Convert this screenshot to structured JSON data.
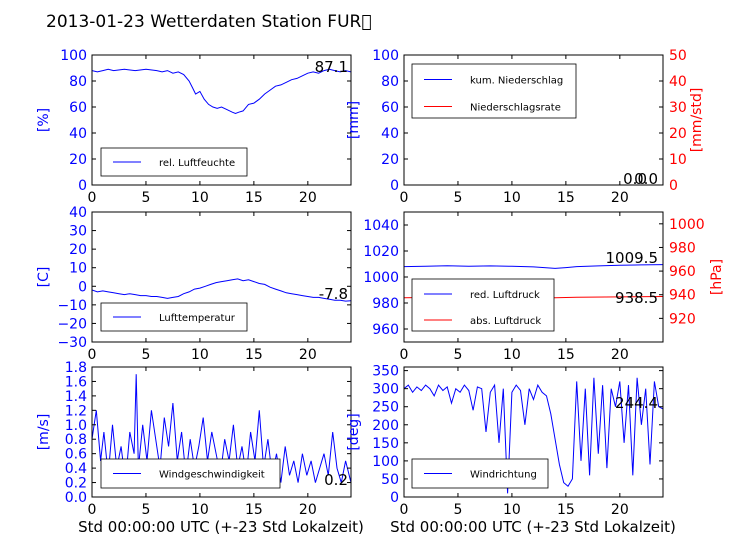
{
  "figure_title": "2013-01-23 Wetterdaten Station FUR\u0000",
  "xlabel": "Std 00:00:00 UTC (+-23 Std Lokalzeit)",
  "colors": {
    "blue": "#0000ff",
    "red": "#ff0000",
    "black": "#000000"
  },
  "chart_data": [
    {
      "id": "humidity",
      "type": "line",
      "xlim": [
        0,
        24
      ],
      "ylim": [
        0,
        100
      ],
      "xticks": [
        0,
        5,
        10,
        15,
        20
      ],
      "yticks": [
        0,
        20,
        40,
        60,
        80,
        100
      ],
      "ylabel": "[%]",
      "legend": [
        "rel. Luftfeuchte"
      ],
      "legend_placement": "lower-left",
      "value_label": "87.1",
      "series": [
        {
          "name": "rel. Luftfeuchte",
          "color": "#0000ff",
          "x": [
            0,
            0.5,
            1,
            1.5,
            2,
            3,
            4,
            5,
            6,
            6.5,
            7,
            7.5,
            8,
            8.5,
            9,
            9.3,
            9.6,
            10,
            10.4,
            10.8,
            11.2,
            11.6,
            12,
            12.5,
            13,
            13.3,
            13.6,
            14,
            14.5,
            15,
            15.5,
            16,
            16.5,
            17,
            17.5,
            18,
            18.5,
            19,
            19.5,
            20,
            20.5,
            21,
            21.5,
            22,
            22.5,
            23,
            23.5,
            24
          ],
          "y": [
            88,
            87,
            88,
            89,
            88,
            89,
            88,
            89,
            88,
            87,
            88,
            86,
            87,
            85,
            80,
            75,
            70,
            72,
            66,
            62,
            60,
            59,
            60,
            58,
            56,
            55,
            56,
            57,
            62,
            63,
            66,
            70,
            73,
            76,
            77,
            79,
            81,
            82,
            84,
            86,
            87,
            86,
            88,
            89,
            88,
            87,
            88,
            87
          ]
        }
      ]
    },
    {
      "id": "precipitation",
      "type": "line",
      "xlim": [
        0,
        24
      ],
      "ylim": [
        0,
        100
      ],
      "ylim_right": [
        0,
        50
      ],
      "xticks": [
        0,
        5,
        10,
        15,
        20
      ],
      "yticks": [
        0,
        20,
        40,
        60,
        80,
        100
      ],
      "yticks_right": [
        0,
        10,
        20,
        30,
        40,
        50
      ],
      "ylabel": "[mm]",
      "ylabel_right": "[mm/std]",
      "legend": [
        "kum. Niederschlag",
        "Niederschlagsrate"
      ],
      "legend_placement": "upper-left",
      "value_label": "0.0",
      "value_label_right": "0.0",
      "series": [
        {
          "name": "kum. Niederschlag",
          "color": "#0000ff",
          "x": [
            0,
            24
          ],
          "y": [
            0,
            0
          ]
        },
        {
          "name": "Niederschlagsrate",
          "color": "#ff0000",
          "axis": "right",
          "x": [
            0,
            24
          ],
          "y": [
            0,
            0
          ]
        }
      ]
    },
    {
      "id": "temperature",
      "type": "line",
      "xlim": [
        0,
        24
      ],
      "ylim": [
        -30,
        40
      ],
      "xticks": [
        0,
        5,
        10,
        15,
        20
      ],
      "yticks": [
        -30,
        -20,
        -10,
        0,
        10,
        20,
        30,
        40
      ],
      "ylabel": "[C]",
      "legend": [
        "Lufttemperatur"
      ],
      "legend_placement": "lower-left",
      "value_label": "-7.8",
      "series": [
        {
          "name": "Lufttemperatur",
          "color": "#0000ff",
          "x": [
            0,
            0.5,
            1,
            1.5,
            2,
            2.5,
            3,
            3.5,
            4,
            4.5,
            5,
            5.5,
            6,
            6.5,
            7,
            7.5,
            8,
            8.5,
            9,
            9.5,
            10,
            10.5,
            11,
            11.5,
            12,
            12.5,
            13,
            13.5,
            14,
            14.5,
            15,
            15.5,
            16,
            16.5,
            17,
            17.5,
            18,
            18.5,
            19,
            19.5,
            20,
            20.5,
            21,
            21.5,
            22,
            22.5,
            23,
            23.5,
            24
          ],
          "y": [
            -2,
            -3,
            -2.5,
            -3,
            -3.5,
            -4,
            -4.5,
            -4,
            -4.5,
            -5,
            -5,
            -5.5,
            -5.5,
            -6,
            -6.5,
            -6,
            -5.5,
            -4,
            -3,
            -1.5,
            -1,
            0,
            1,
            2,
            2.5,
            3,
            3.5,
            4,
            3,
            3.5,
            2.5,
            1.5,
            1,
            -0.5,
            -1.5,
            -2.5,
            -3.5,
            -4,
            -4.5,
            -5,
            -5.5,
            -6,
            -6,
            -6.5,
            -7,
            -7.5,
            -7.5,
            -8,
            -7.8
          ]
        }
      ]
    },
    {
      "id": "pressure",
      "type": "line",
      "xlim": [
        0,
        24
      ],
      "ylim": [
        950,
        1050
      ],
      "ylim_right": [
        900,
        1010
      ],
      "xticks": [
        0,
        5,
        10,
        15,
        20
      ],
      "yticks": [
        960,
        980,
        1000,
        1020,
        1040
      ],
      "yticks_right": [
        920,
        940,
        960,
        980,
        1000
      ],
      "ylabel": "[hPa]",
      "legend": [
        "red. Luftdruck",
        "abs. Luftdruck"
      ],
      "legend_placement": "lower-left",
      "value_label": "1009.5",
      "value_label_right": "938.5",
      "series": [
        {
          "name": "red. Luftdruck",
          "color": "#0000ff",
          "x": [
            0,
            2,
            4,
            6,
            8,
            10,
            12,
            13,
            14,
            15,
            16,
            18,
            20,
            22,
            24
          ],
          "y": [
            1008,
            1008.2,
            1008.6,
            1008.2,
            1008.5,
            1008.2,
            1007.8,
            1007.2,
            1006.6,
            1007.2,
            1008,
            1008.5,
            1009,
            1009.3,
            1009.5
          ]
        },
        {
          "name": "abs. Luftdruck",
          "color": "#ff0000",
          "axis": "right",
          "x": [
            0,
            4,
            8,
            12,
            14,
            16,
            20,
            24
          ],
          "y": [
            937.5,
            937.8,
            938,
            937.6,
            937.5,
            937.8,
            938.2,
            938.5
          ]
        }
      ]
    },
    {
      "id": "windspeed",
      "type": "line",
      "xlim": [
        0,
        24
      ],
      "ylim": [
        0,
        1.8
      ],
      "xticks": [
        0,
        5,
        10,
        15,
        20
      ],
      "yticks": [
        0,
        0.2,
        0.4,
        0.6,
        0.8,
        1.0,
        1.2,
        1.4,
        1.6,
        1.8
      ],
      "ytick_labels": [
        "0.0",
        "0.2",
        "0.4",
        "0.6",
        "0.8",
        "1.0",
        "1.2",
        "1.4",
        "1.6",
        "1.8"
      ],
      "ylabel": "[m/s]",
      "legend": [
        "Windgeschwindigkeit"
      ],
      "legend_placement": "lower-left",
      "value_label": "0.2",
      "series": [
        {
          "name": "Windgeschwindigkeit",
          "color": "#0000ff",
          "x": [
            0,
            0.4,
            0.8,
            1.1,
            1.5,
            1.9,
            2.3,
            2.7,
            3.1,
            3.5,
            3.9,
            4.1,
            4.3,
            4.7,
            5.1,
            5.5,
            5.9,
            6.3,
            6.7,
            7.1,
            7.5,
            7.9,
            8.3,
            8.7,
            9.1,
            9.5,
            9.9,
            10.3,
            10.7,
            11.1,
            11.5,
            11.9,
            12.3,
            12.7,
            13.1,
            13.5,
            13.9,
            14.3,
            14.7,
            15.1,
            15.5,
            15.9,
            16.3,
            16.7,
            17.1,
            17.5,
            17.9,
            18.3,
            18.7,
            19.1,
            19.5,
            19.9,
            20.3,
            20.7,
            21.1,
            21.5,
            21.9,
            22.3,
            22.7,
            23.1,
            23.5,
            24
          ],
          "y": [
            0.8,
            1.2,
            0.5,
            0.9,
            0.3,
            1.0,
            0.4,
            0.7,
            0.2,
            0.9,
            0.6,
            1.7,
            0.4,
            1.0,
            0.5,
            1.2,
            0.8,
            0.4,
            1.1,
            0.7,
            1.3,
            0.5,
            0.9,
            0.3,
            0.8,
            0.4,
            0.7,
            1.1,
            0.5,
            0.9,
            0.6,
            0.3,
            0.8,
            0.5,
            1.0,
            0.4,
            0.7,
            0.3,
            0.9,
            0.5,
            1.2,
            0.4,
            0.8,
            0.3,
            0.6,
            0.2,
            0.7,
            0.3,
            0.5,
            0.2,
            0.6,
            0.3,
            0.5,
            0.2,
            0.4,
            0.6,
            0.3,
            0.9,
            0.4,
            0.2,
            0.5,
            0.2
          ]
        }
      ]
    },
    {
      "id": "winddirection",
      "type": "line",
      "xlim": [
        0,
        24
      ],
      "ylim": [
        0,
        360
      ],
      "xticks": [
        0,
        5,
        10,
        15,
        20
      ],
      "yticks": [
        0,
        50,
        100,
        150,
        200,
        250,
        300,
        350
      ],
      "ylabel": "[deg]",
      "legend": [
        "Windrichtung"
      ],
      "legend_placement": "lower-left",
      "value_label": "244.4",
      "series": [
        {
          "name": "Windrichtung",
          "color": "#0000ff",
          "x": [
            0,
            0.4,
            0.8,
            1.2,
            1.6,
            2.0,
            2.4,
            2.8,
            3.2,
            3.6,
            4.0,
            4.4,
            4.8,
            5.2,
            5.6,
            6.0,
            6.4,
            6.8,
            7.2,
            7.6,
            8.0,
            8.4,
            8.8,
            9.2,
            9.6,
            10.0,
            10.4,
            10.8,
            11.2,
            11.6,
            12.0,
            12.4,
            12.8,
            13.2,
            13.6,
            14.0,
            14.4,
            14.8,
            15.2,
            15.6,
            16.0,
            16.4,
            16.8,
            17.2,
            17.6,
            18.0,
            18.4,
            18.8,
            19.2,
            19.6,
            20.0,
            20.4,
            20.8,
            21.2,
            21.6,
            22.0,
            22.4,
            22.8,
            23.2,
            23.6,
            24
          ],
          "y": [
            300,
            310,
            290,
            305,
            295,
            310,
            300,
            280,
            310,
            295,
            305,
            260,
            300,
            290,
            310,
            295,
            240,
            305,
            300,
            180,
            290,
            310,
            150,
            300,
            10,
            290,
            310,
            295,
            200,
            300,
            270,
            310,
            290,
            280,
            230,
            160,
            90,
            40,
            30,
            50,
            320,
            100,
            300,
            60,
            330,
            120,
            310,
            80,
            300,
            250,
            320,
            150,
            310,
            60,
            330,
            200,
            300,
            90,
            320,
            250,
            244
          ]
        }
      ]
    }
  ]
}
